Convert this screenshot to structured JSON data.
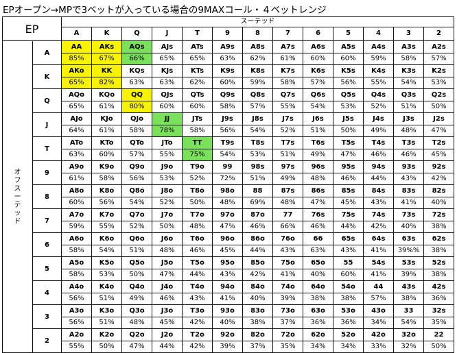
{
  "title": "EPオープン→MPで3ベットが入っている場合の9MAXコール・４ベットレンジ",
  "corner_label": "EP",
  "suited_label": "スーテッド",
  "offsuit_label": "オフスーテッド",
  "offsuit_label_chars": [
    "オ",
    "フ",
    "ス",
    "ー",
    "テ",
    "ッ",
    "ド"
  ],
  "ranks": [
    "A",
    "K",
    "Q",
    "J",
    "T",
    "9",
    "8",
    "7",
    "6",
    "5",
    "4",
    "3",
    "2"
  ],
  "colors": {
    "yellow": "#f8f300",
    "green": "#7ae25a"
  },
  "grid": [
    {
      "rank": "A",
      "cells": [
        {
          "hand": "AA",
          "pct": "85%",
          "hl": "yellow"
        },
        {
          "hand": "AKs",
          "pct": "67%",
          "hl": "yellow"
        },
        {
          "hand": "AQs",
          "pct": "66%",
          "hl": "green"
        },
        {
          "hand": "AJs",
          "pct": "65%"
        },
        {
          "hand": "ATs",
          "pct": "65%"
        },
        {
          "hand": "A9s",
          "pct": "63%"
        },
        {
          "hand": "A8s",
          "pct": "62%"
        },
        {
          "hand": "A7s",
          "pct": "61%"
        },
        {
          "hand": "A6s",
          "pct": "60%"
        },
        {
          "hand": "A5s",
          "pct": "60%"
        },
        {
          "hand": "A4s",
          "pct": "59%"
        },
        {
          "hand": "A3s",
          "pct": "58%"
        },
        {
          "hand": "A2s",
          "pct": "57%"
        }
      ]
    },
    {
      "rank": "K",
      "cells": [
        {
          "hand": "AKo",
          "pct": "65%",
          "hl": "yellow"
        },
        {
          "hand": "KK",
          "pct": "82%",
          "hl": "yellow"
        },
        {
          "hand": "KQs",
          "pct": "63%"
        },
        {
          "hand": "KJs",
          "pct": "63%"
        },
        {
          "hand": "KTs",
          "pct": "62%"
        },
        {
          "hand": "K9s",
          "pct": "60%"
        },
        {
          "hand": "K8s",
          "pct": "59%"
        },
        {
          "hand": "K7s",
          "pct": "58%"
        },
        {
          "hand": "K6s",
          "pct": "57%"
        },
        {
          "hand": "K5s",
          "pct": "56%"
        },
        {
          "hand": "K4s",
          "pct": "55%"
        },
        {
          "hand": "K3s",
          "pct": "54%"
        },
        {
          "hand": "K2s",
          "pct": "53%"
        }
      ]
    },
    {
      "rank": "Q",
      "cells": [
        {
          "hand": "AQo",
          "pct": "65%"
        },
        {
          "hand": "KQo",
          "pct": "61%"
        },
        {
          "hand": "QQ",
          "pct": "80%",
          "hl": "yellow"
        },
        {
          "hand": "QJs",
          "pct": "60%"
        },
        {
          "hand": "QTs",
          "pct": "60%"
        },
        {
          "hand": "Q9s",
          "pct": "58%"
        },
        {
          "hand": "Q8s",
          "pct": "57%"
        },
        {
          "hand": "Q7s",
          "pct": "55%"
        },
        {
          "hand": "Q6s",
          "pct": "54%"
        },
        {
          "hand": "Q5s",
          "pct": "53%"
        },
        {
          "hand": "Q4s",
          "pct": "52%"
        },
        {
          "hand": "Q3s",
          "pct": "51%"
        },
        {
          "hand": "Q2s",
          "pct": "50%"
        }
      ]
    },
    {
      "rank": "J",
      "cells": [
        {
          "hand": "AJo",
          "pct": "64%"
        },
        {
          "hand": "KJo",
          "pct": "61%"
        },
        {
          "hand": "QJo",
          "pct": "58%"
        },
        {
          "hand": "JJ",
          "pct": "78%",
          "hl": "green"
        },
        {
          "hand": "JTs",
          "pct": "58%"
        },
        {
          "hand": "J9s",
          "pct": "56%"
        },
        {
          "hand": "J8s",
          "pct": "54%"
        },
        {
          "hand": "J7s",
          "pct": "52%"
        },
        {
          "hand": "J6s",
          "pct": "51%"
        },
        {
          "hand": "J5s",
          "pct": "50%"
        },
        {
          "hand": "J4s",
          "pct": "49%"
        },
        {
          "hand": "J3s",
          "pct": "48%"
        },
        {
          "hand": "J2s",
          "pct": "47%"
        }
      ]
    },
    {
      "rank": "T",
      "cells": [
        {
          "hand": "ATo",
          "pct": "63%"
        },
        {
          "hand": "KTo",
          "pct": "60%"
        },
        {
          "hand": "QTo",
          "pct": "57%"
        },
        {
          "hand": "JTo",
          "pct": "55%"
        },
        {
          "hand": "TT",
          "pct": "75%",
          "hl": "green"
        },
        {
          "hand": "T9s",
          "pct": "54%"
        },
        {
          "hand": "T8s",
          "pct": "53%"
        },
        {
          "hand": "T7s",
          "pct": "51%"
        },
        {
          "hand": "T6s",
          "pct": "49%"
        },
        {
          "hand": "T5s",
          "pct": "47%"
        },
        {
          "hand": "T4s",
          "pct": "46%"
        },
        {
          "hand": "T3s",
          "pct": "46%"
        },
        {
          "hand": "T2s",
          "pct": "45%"
        }
      ]
    },
    {
      "rank": "9",
      "cells": [
        {
          "hand": "A9o",
          "pct": "61%"
        },
        {
          "hand": "K9o",
          "pct": "58%"
        },
        {
          "hand": "Q9o",
          "pct": "56%"
        },
        {
          "hand": "J9o",
          "pct": "53%"
        },
        {
          "hand": "T9o",
          "pct": "52%"
        },
        {
          "hand": "99",
          "pct": "72%"
        },
        {
          "hand": "98s",
          "pct": "51%"
        },
        {
          "hand": "97s",
          "pct": "49%"
        },
        {
          "hand": "96s",
          "pct": "48%"
        },
        {
          "hand": "95s",
          "pct": "46%"
        },
        {
          "hand": "94s",
          "pct": "44%"
        },
        {
          "hand": "93s",
          "pct": "43%"
        },
        {
          "hand": "92s",
          "pct": "42%"
        }
      ]
    },
    {
      "rank": "8",
      "cells": [
        {
          "hand": "A8o",
          "pct": "60%"
        },
        {
          "hand": "K8o",
          "pct": "56%"
        },
        {
          "hand": "Q8o",
          "pct": "54%"
        },
        {
          "hand": "J8o",
          "pct": "52%"
        },
        {
          "hand": "T8o",
          "pct": "50%"
        },
        {
          "hand": "98o",
          "pct": "48%"
        },
        {
          "hand": "88",
          "pct": "69%"
        },
        {
          "hand": "87s",
          "pct": "48%"
        },
        {
          "hand": "86s",
          "pct": "47%"
        },
        {
          "hand": "85s",
          "pct": "45%"
        },
        {
          "hand": "84s",
          "pct": "43%"
        },
        {
          "hand": "83s",
          "pct": "41%"
        },
        {
          "hand": "82s",
          "pct": "40%"
        }
      ]
    },
    {
      "rank": "7",
      "cells": [
        {
          "hand": "A7o",
          "pct": "59%"
        },
        {
          "hand": "K7o",
          "pct": "55%"
        },
        {
          "hand": "Q7o",
          "pct": "52%"
        },
        {
          "hand": "J7o",
          "pct": "50%"
        },
        {
          "hand": "T7o",
          "pct": "48%"
        },
        {
          "hand": "97o",
          "pct": "47%"
        },
        {
          "hand": "87o",
          "pct": "46%"
        },
        {
          "hand": "77",
          "pct": "66%"
        },
        {
          "hand": "76s",
          "pct": "46%"
        },
        {
          "hand": "75s",
          "pct": "44%"
        },
        {
          "hand": "74s",
          "pct": "42%"
        },
        {
          "hand": "73s",
          "pct": "40%"
        },
        {
          "hand": "72s",
          "pct": "38%"
        }
      ]
    },
    {
      "rank": "6",
      "cells": [
        {
          "hand": "A6o",
          "pct": "58%"
        },
        {
          "hand": "K6o",
          "pct": "54%"
        },
        {
          "hand": "Q6o",
          "pct": "51%"
        },
        {
          "hand": "J6o",
          "pct": "48%"
        },
        {
          "hand": "T6o",
          "pct": "46%"
        },
        {
          "hand": "96o",
          "pct": "45%"
        },
        {
          "hand": "86o",
          "pct": "44%"
        },
        {
          "hand": "76o",
          "pct": "43%"
        },
        {
          "hand": "66",
          "pct": "63%"
        },
        {
          "hand": "65s",
          "pct": "43%"
        },
        {
          "hand": "64s",
          "pct": "41%"
        },
        {
          "hand": "63s",
          "pct": "39%%"
        },
        {
          "hand": "62s",
          "pct": "38%"
        }
      ]
    },
    {
      "rank": "5",
      "cells": [
        {
          "hand": "A5o",
          "pct": "58%"
        },
        {
          "hand": "K5o",
          "pct": "53%"
        },
        {
          "hand": "Q5o",
          "pct": "50%"
        },
        {
          "hand": "J5o",
          "pct": "47%"
        },
        {
          "hand": "T5o",
          "pct": "44%"
        },
        {
          "hand": "95o",
          "pct": "43%"
        },
        {
          "hand": "85o",
          "pct": "42%"
        },
        {
          "hand": "75o",
          "pct": "41%"
        },
        {
          "hand": "65o",
          "pct": "40%"
        },
        {
          "hand": "55",
          "pct": "60%"
        },
        {
          "hand": "54s",
          "pct": "41%"
        },
        {
          "hand": "53s",
          "pct": "39%"
        },
        {
          "hand": "52s",
          "pct": "38%"
        }
      ]
    },
    {
      "rank": "4",
      "cells": [
        {
          "hand": "A4o",
          "pct": "56%"
        },
        {
          "hand": "K4o",
          "pct": "51%"
        },
        {
          "hand": "Q4o",
          "pct": "49%"
        },
        {
          "hand": "J4o",
          "pct": "46%"
        },
        {
          "hand": "T4o",
          "pct": "43%"
        },
        {
          "hand": "94o",
          "pct": "41%"
        },
        {
          "hand": "84o",
          "pct": "40%"
        },
        {
          "hand": "74o",
          "pct": "39%"
        },
        {
          "hand": "64o",
          "pct": "38%"
        },
        {
          "hand": "54o",
          "pct": "38%"
        },
        {
          "hand": "44",
          "pct": "57%"
        },
        {
          "hand": "43s",
          "pct": "38%"
        },
        {
          "hand": "42s",
          "pct": "36%"
        }
      ]
    },
    {
      "rank": "3",
      "cells": [
        {
          "hand": "A3o",
          "pct": "56%"
        },
        {
          "hand": "K3o",
          "pct": "51%"
        },
        {
          "hand": "Q3o",
          "pct": "48%"
        },
        {
          "hand": "J3o",
          "pct": "45%"
        },
        {
          "hand": "T3o",
          "pct": "42%"
        },
        {
          "hand": "93o",
          "pct": "40%"
        },
        {
          "hand": "83o",
          "pct": "38%"
        },
        {
          "hand": "73o",
          "pct": "37%"
        },
        {
          "hand": "63o",
          "pct": "36%"
        },
        {
          "hand": "53o",
          "pct": "36%"
        },
        {
          "hand": "43o",
          "pct": "34%"
        },
        {
          "hand": "33",
          "pct": "54%"
        },
        {
          "hand": "32s",
          "pct": "35%"
        }
      ]
    },
    {
      "rank": "2",
      "cells": [
        {
          "hand": "A2o",
          "pct": "55%"
        },
        {
          "hand": "K2o",
          "pct": "50%"
        },
        {
          "hand": "Q2o",
          "pct": "47%"
        },
        {
          "hand": "J2o",
          "pct": "44%"
        },
        {
          "hand": "T2o",
          "pct": "42%"
        },
        {
          "hand": "92o",
          "pct": "39%"
        },
        {
          "hand": "82o",
          "pct": "37%"
        },
        {
          "hand": "72o",
          "pct": "35%"
        },
        {
          "hand": "62o",
          "pct": "34%"
        },
        {
          "hand": "52o",
          "pct": "34%"
        },
        {
          "hand": "42o",
          "pct": "33%"
        },
        {
          "hand": "32o",
          "pct": "32%"
        },
        {
          "hand": "22",
          "pct": "50%"
        }
      ]
    }
  ]
}
